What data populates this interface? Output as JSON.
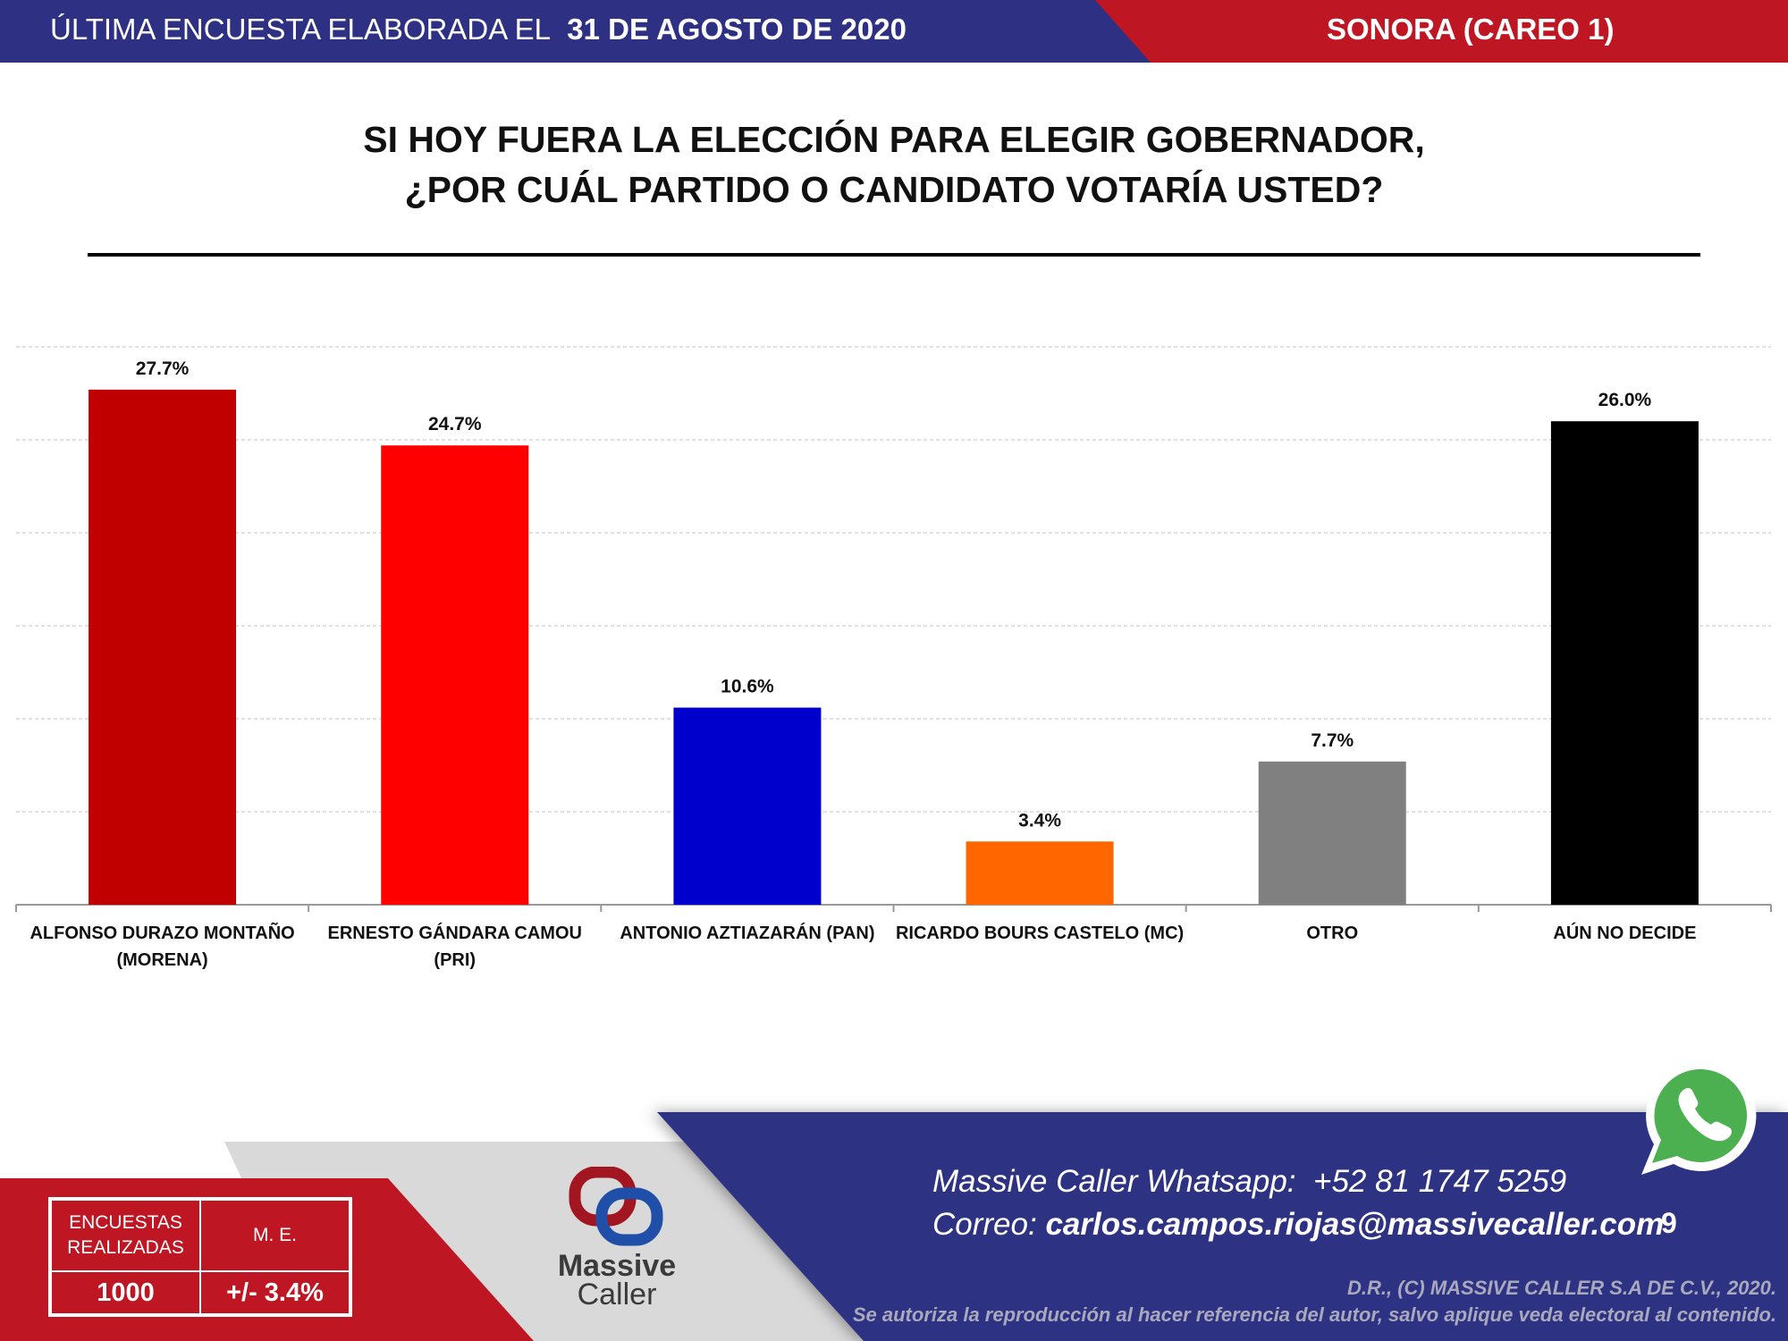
{
  "header": {
    "prefix": "ÚLTIMA ENCUESTA ELABORADA EL",
    "date": "31 DE AGOSTO DE 2020",
    "region": "SONORA (CAREO 1)",
    "colors": {
      "blue": "#2e3083",
      "red": "#be1622"
    }
  },
  "title": {
    "line1": "SI HOY FUERA LA ELECCIÓN PARA ELEGIR GOBERNADOR,",
    "line2": "¿POR CUÁL PARTIDO O CANDIDATO VOTARÍA USTED?"
  },
  "chart_data": {
    "type": "bar",
    "title": "",
    "xlabel": "",
    "ylabel": "",
    "ylim": [
      0,
      30
    ],
    "grid": true,
    "gridlines": [
      5,
      10,
      15,
      20,
      25,
      30
    ],
    "categories": [
      [
        "ALFONSO DURAZO MONTAÑO",
        "(MORENA)"
      ],
      [
        "ERNESTO GÁNDARA CAMOU",
        "(PRI)"
      ],
      [
        "ANTONIO AZTIAZARÁN (PAN)"
      ],
      [
        "RICARDO BOURS CASTELO (MC)"
      ],
      [
        "OTRO"
      ],
      [
        "AÚN NO DECIDE"
      ]
    ],
    "values": [
      27.7,
      24.7,
      10.6,
      3.4,
      7.7,
      26.0
    ],
    "value_labels": [
      "27.7%",
      "24.7%",
      "10.6%",
      "3.4%",
      "7.7%",
      "26.0%"
    ],
    "colors": [
      "#c00000",
      "#ff0000",
      "#0000cc",
      "#ff6600",
      "#808080",
      "#000000"
    ]
  },
  "footer": {
    "table": {
      "h1": "ENCUESTAS REALIZADAS",
      "h2": "M. E.",
      "v1": "1000",
      "v2": "+/- 3.4%"
    },
    "logo_text": [
      "Massive",
      "Caller"
    ],
    "whatsapp_label": "Massive Caller Whatsapp:",
    "whatsapp_number": "+52 81 1747 5259",
    "email_label": "Correo:",
    "email": "carlos.campos.riojas@massivecaller.com",
    "page_number": "9",
    "copyright1": "D.R., (C) MASSIVE CALLER S.A DE C.V., 2020.",
    "copyright2": "Se autoriza la reproducción al hacer referencia del autor, salvo aplique veda electoral al contenido."
  }
}
